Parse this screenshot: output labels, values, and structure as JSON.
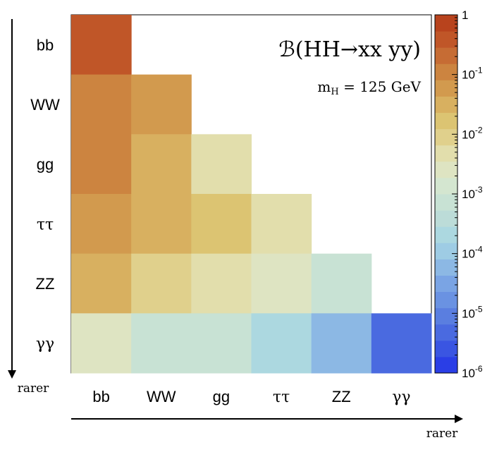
{
  "chart_data": {
    "type": "heatmap",
    "title": "ℬ(HH→xx yy)",
    "subtitle": "m",
    "subtitle_sub": "H",
    "subtitle_rest": " = 125 GeV",
    "x_categories": [
      "bb",
      "WW",
      "gg",
      "ττ",
      "ZZ",
      "γγ"
    ],
    "y_categories": [
      "bb",
      "WW",
      "gg",
      "ττ",
      "ZZ",
      "γγ"
    ],
    "x_direction_label": "rarer",
    "y_direction_label": "rarer",
    "color_scale": "log",
    "zlim": [
      1e-06,
      1
    ],
    "colorbar_ticks": [
      {
        "value": 1,
        "base": "1",
        "exp": ""
      },
      {
        "value": 0.1,
        "base": "10",
        "exp": "-1"
      },
      {
        "value": 0.01,
        "base": "10",
        "exp": "-2"
      },
      {
        "value": 0.001,
        "base": "10",
        "exp": "-3"
      },
      {
        "value": 0.0001,
        "base": "10",
        "exp": "-4"
      },
      {
        "value": 1e-05,
        "base": "10",
        "exp": "-5"
      },
      {
        "value": 1e-06,
        "base": "10",
        "exp": "-6"
      }
    ],
    "palette": [
      "#2a3ee6",
      "#3a55e2",
      "#4a6ae0",
      "#5a7ee0",
      "#6a92e2",
      "#7aa4e4",
      "#8cb8e4",
      "#9ecce4",
      "#acd8e0",
      "#bcdcd8",
      "#c8e2d4",
      "#d4e6d0",
      "#dee4c2",
      "#e2deac",
      "#e0d08c",
      "#dcc472",
      "#d8b060",
      "#d29a4e",
      "#cc8440",
      "#c66c34",
      "#c05628",
      "#b8431d"
    ],
    "cells": [
      {
        "row": 0,
        "col": 0,
        "value": 0.34
      },
      {
        "row": 1,
        "col": 0,
        "value": 0.145
      },
      {
        "row": 1,
        "col": 1,
        "value": 0.047
      },
      {
        "row": 2,
        "col": 0,
        "value": 0.0874
      },
      {
        "row": 2,
        "col": 1,
        "value": 0.04
      },
      {
        "row": 2,
        "col": 2,
        "value": 0.0056
      },
      {
        "row": 3,
        "col": 0,
        "value": 0.073
      },
      {
        "row": 3,
        "col": 1,
        "value": 0.025
      },
      {
        "row": 3,
        "col": 2,
        "value": 0.015
      },
      {
        "row": 3,
        "col": 3,
        "value": 0.0039
      },
      {
        "row": 4,
        "col": 0,
        "value": 0.031
      },
      {
        "row": 4,
        "col": 1,
        "value": 0.0107
      },
      {
        "row": 4,
        "col": 2,
        "value": 0.0064
      },
      {
        "row": 4,
        "col": 3,
        "value": 0.0031
      },
      {
        "row": 4,
        "col": 4,
        "value": 0.00069
      },
      {
        "row": 5,
        "col": 0,
        "value": 0.0026
      },
      {
        "row": 5,
        "col": 1,
        "value": 0.0009
      },
      {
        "row": 5,
        "col": 2,
        "value": 0.00054
      },
      {
        "row": 5,
        "col": 3,
        "value": 0.00028
      },
      {
        "row": 5,
        "col": 4,
        "value": 6.3e-05
      },
      {
        "row": 5,
        "col": 5,
        "value": 5.2e-06
      }
    ]
  }
}
